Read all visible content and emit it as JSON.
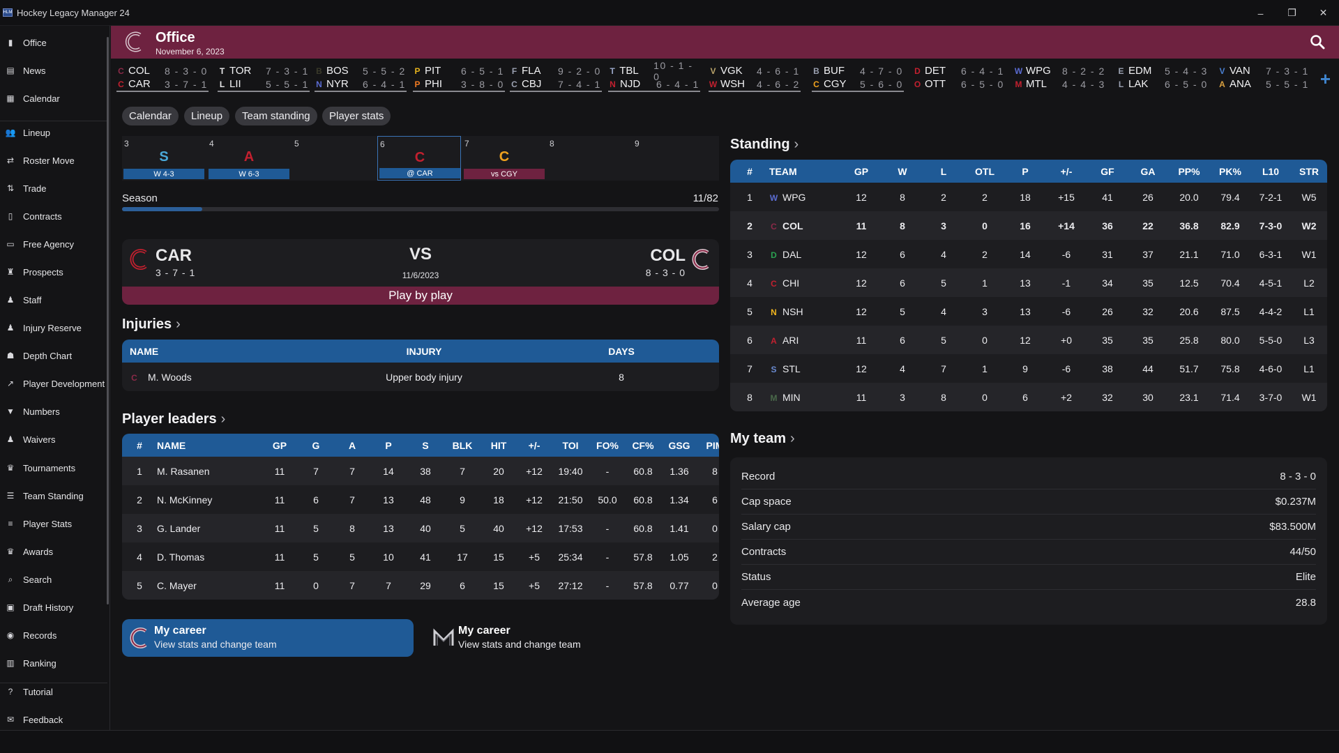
{
  "window": {
    "title": "Hockey Legacy Manager 24",
    "icon_text": "HLM"
  },
  "sidebar": {
    "items": [
      {
        "label": "Office",
        "icon": "building-icon",
        "glyph": "▮"
      },
      {
        "label": "News",
        "icon": "newspaper-icon",
        "glyph": "▤"
      },
      {
        "label": "Calendar",
        "icon": "calendar-icon",
        "glyph": "▦"
      },
      {
        "label": "Lineup",
        "icon": "users-icon",
        "glyph": "👥"
      },
      {
        "label": "Roster Move",
        "icon": "swap-icon",
        "glyph": "⇄"
      },
      {
        "label": "Trade",
        "icon": "trade-icon",
        "glyph": "⇅"
      },
      {
        "label": "Contracts",
        "icon": "document-icon",
        "glyph": "▯"
      },
      {
        "label": "Free Agency",
        "icon": "id-card-icon",
        "glyph": "▭"
      },
      {
        "label": "Prospects",
        "icon": "binoculars-icon",
        "glyph": "♜"
      },
      {
        "label": "Staff",
        "icon": "user-tie-icon",
        "glyph": "♟"
      },
      {
        "label": "Injury Reserve",
        "icon": "user-medical-icon",
        "glyph": "♟"
      },
      {
        "label": "Depth Chart",
        "icon": "sitemap-icon",
        "glyph": "☗"
      },
      {
        "label": "Player Development",
        "icon": "chart-line-icon",
        "glyph": "↗"
      },
      {
        "label": "Numbers",
        "icon": "jersey-icon",
        "glyph": "▼"
      },
      {
        "label": "Waivers",
        "icon": "user-minus-icon",
        "glyph": "♟"
      },
      {
        "label": "Tournaments",
        "icon": "trophy-icon",
        "glyph": "♛"
      },
      {
        "label": "Team Standing",
        "icon": "list-icon",
        "glyph": "☰"
      },
      {
        "label": "Player Stats",
        "icon": "database-icon",
        "glyph": "≡"
      },
      {
        "label": "Awards",
        "icon": "award-icon",
        "glyph": "♛"
      },
      {
        "label": "Search",
        "icon": "search-icon",
        "glyph": "⌕"
      },
      {
        "label": "Draft History",
        "icon": "book-icon",
        "glyph": "▣"
      },
      {
        "label": "Records",
        "icon": "globe-icon",
        "glyph": "◉"
      },
      {
        "label": "Ranking",
        "icon": "bar-chart-icon",
        "glyph": "▥"
      },
      {
        "label": "Tutorial",
        "icon": "question-circle-icon",
        "glyph": "?"
      },
      {
        "label": "Feedback",
        "icon": "comments-icon",
        "glyph": "✉"
      }
    ]
  },
  "header": {
    "title": "Office",
    "date": "November 6, 2023",
    "team_letter": "C",
    "accent": "#6e2240"
  },
  "ticker": {
    "games": [
      {
        "t1": {
          "abbr": "COL",
          "rec": "8 - 3 - 0",
          "logo": "C",
          "color": "#8b2a48"
        },
        "t2": {
          "abbr": "CAR",
          "rec": "3 - 7 - 1",
          "logo": "C",
          "color": "#c2202f"
        }
      },
      {
        "t1": {
          "abbr": "TOR",
          "rec": "7 - 3 - 1",
          "logo": "T",
          "color": "#e8e8ea"
        },
        "t2": {
          "abbr": "LII",
          "rec": "5 - 5 - 1",
          "logo": "L",
          "color": "#e8e8ea"
        }
      },
      {
        "t1": {
          "abbr": "BOS",
          "rec": "5 - 5 - 2",
          "logo": "B",
          "color": "#3a3a2a"
        },
        "t2": {
          "abbr": "NYR",
          "rec": "6 - 4 - 1",
          "logo": "N",
          "color": "#5a6bd0"
        }
      },
      {
        "t1": {
          "abbr": "PIT",
          "rec": "6 - 5 - 1",
          "logo": "P",
          "color": "#e6b31e"
        },
        "t2": {
          "abbr": "PHI",
          "rec": "3 - 8 - 0",
          "logo": "P",
          "color": "#f07a22"
        }
      },
      {
        "t1": {
          "abbr": "FLA",
          "rec": "9 - 2 - 0",
          "logo": "F",
          "color": "#9aa0b0"
        },
        "t2": {
          "abbr": "CBJ",
          "rec": "7 - 4 - 1",
          "logo": "C",
          "color": "#9aa0b0"
        }
      },
      {
        "t1": {
          "abbr": "TBL",
          "rec": "10 - 1 - 0",
          "logo": "T",
          "color": "#9aa6c8"
        },
        "t2": {
          "abbr": "NJD",
          "rec": "6 - 4 - 1",
          "logo": "N",
          "color": "#c2202f"
        }
      },
      {
        "t1": {
          "abbr": "VGK",
          "rec": "4 - 6 - 1",
          "logo": "V",
          "color": "#b9a36a"
        },
        "t2": {
          "abbr": "WSH",
          "rec": "4 - 6 - 2",
          "logo": "W",
          "color": "#c2202f"
        }
      },
      {
        "t1": {
          "abbr": "BUF",
          "rec": "4 - 7 - 0",
          "logo": "B",
          "color": "#9aa0b0"
        },
        "t2": {
          "abbr": "CGY",
          "rec": "5 - 6 - 0",
          "logo": "C",
          "color": "#f0a21e"
        }
      },
      {
        "t1": {
          "abbr": "DET",
          "rec": "6 - 4 - 1",
          "logo": "D",
          "color": "#c2202f"
        },
        "t2": {
          "abbr": "OTT",
          "rec": "6 - 5 - 0",
          "logo": "O",
          "color": "#c2202f"
        }
      },
      {
        "t1": {
          "abbr": "WPG",
          "rec": "8 - 2 - 2",
          "logo": "W",
          "color": "#5a6bd0"
        },
        "t2": {
          "abbr": "MTL",
          "rec": "4 - 4 - 3",
          "logo": "M",
          "color": "#c2202f"
        }
      },
      {
        "t1": {
          "abbr": "EDM",
          "rec": "5 - 4 - 3",
          "logo": "E",
          "color": "#9aa0b0"
        },
        "t2": {
          "abbr": "LAK",
          "rec": "6 - 5 - 0",
          "logo": "L",
          "color": "#9aa0b0"
        }
      },
      {
        "t1": {
          "abbr": "VAN",
          "rec": "7 - 3 - 1",
          "logo": "V",
          "color": "#4a7fd0"
        },
        "t2": {
          "abbr": "ANA",
          "rec": "5 - 5 - 1",
          "logo": "A",
          "color": "#d8a040"
        }
      }
    ]
  },
  "tabs": [
    "Calendar",
    "Lineup",
    "Team standing",
    "Player stats"
  ],
  "calendar": {
    "days": [
      {
        "num": "3",
        "logo": "S",
        "logo_color": "#4aa8d8",
        "result": "W 4-3",
        "bar": "#1f5a96"
      },
      {
        "num": "4",
        "logo": "A",
        "logo_color": "#c2202f",
        "result": "W 6-3",
        "bar": "#1f5a96"
      },
      {
        "num": "5",
        "logo": "",
        "logo_color": "",
        "result": "",
        "bar": ""
      },
      {
        "num": "6",
        "logo": "C",
        "logo_color": "#c2202f",
        "result": "@ CAR",
        "bar": "#1f5a96"
      },
      {
        "num": "7",
        "logo": "C",
        "logo_color": "#f0a21e",
        "result": "vs CGY",
        "bar": "#6e2240"
      },
      {
        "num": "8",
        "logo": "",
        "logo_color": "",
        "result": "",
        "bar": ""
      },
      {
        "num": "9",
        "logo": "",
        "logo_color": "",
        "result": "",
        "bar": ""
      }
    ]
  },
  "season": {
    "label": "Season",
    "count": "11/82",
    "progress": 0.134
  },
  "next_game": {
    "home": {
      "abbr": "CAR",
      "rec": "3 - 7 - 1"
    },
    "away": {
      "abbr": "COL",
      "rec": "8 - 3 - 0"
    },
    "vs": "VS",
    "date": "11/6/2023",
    "button": "Play by play"
  },
  "injuries": {
    "title": "Injuries",
    "headers": [
      "NAME",
      "INJURY",
      "DAYS"
    ],
    "rows": [
      {
        "name": "M. Woods",
        "injury": "Upper body injury",
        "days": "8"
      }
    ]
  },
  "leaders": {
    "title": "Player leaders",
    "headers": [
      "#",
      "NAME",
      "GP",
      "G",
      "A",
      "P",
      "S",
      "BLK",
      "HIT",
      "+/-",
      "TOI",
      "FO%",
      "CF%",
      "GSG",
      "PIM"
    ],
    "rows": [
      [
        "1",
        "M. Rasanen",
        "11",
        "7",
        "7",
        "14",
        "38",
        "7",
        "20",
        "+12",
        "19:40",
        "-",
        "60.8",
        "1.36",
        "8"
      ],
      [
        "2",
        "N. McKinney",
        "11",
        "6",
        "7",
        "13",
        "48",
        "9",
        "18",
        "+12",
        "21:50",
        "50.0",
        "60.8",
        "1.34",
        "6"
      ],
      [
        "3",
        "G. Lander",
        "11",
        "5",
        "8",
        "13",
        "40",
        "5",
        "40",
        "+12",
        "17:53",
        "-",
        "60.8",
        "1.41",
        "0"
      ],
      [
        "4",
        "D. Thomas",
        "11",
        "5",
        "5",
        "10",
        "41",
        "17",
        "15",
        "+5",
        "25:34",
        "-",
        "57.8",
        "1.05",
        "2"
      ],
      [
        "5",
        "C. Mayer",
        "11",
        "0",
        "7",
        "7",
        "29",
        "6",
        "15",
        "+5",
        "27:12",
        "-",
        "57.8",
        "0.77",
        "0"
      ]
    ]
  },
  "standing": {
    "title": "Standing",
    "headers": [
      "#",
      "TEAM",
      "GP",
      "W",
      "L",
      "OTL",
      "P",
      "+/-",
      "GF",
      "GA",
      "PP%",
      "PK%",
      "L10",
      "STR"
    ],
    "rows": [
      {
        "cells": [
          "1",
          "WPG",
          "12",
          "8",
          "2",
          "2",
          "18",
          "+15",
          "41",
          "26",
          "20.0",
          "79.4",
          "7-2-1",
          "W5"
        ],
        "logo": "W",
        "color": "#5a6bd0",
        "bold": false
      },
      {
        "cells": [
          "2",
          "COL",
          "11",
          "8",
          "3",
          "0",
          "16",
          "+14",
          "36",
          "22",
          "36.8",
          "82.9",
          "7-3-0",
          "W2"
        ],
        "logo": "C",
        "color": "#8b2a48",
        "bold": true
      },
      {
        "cells": [
          "3",
          "DAL",
          "12",
          "6",
          "4",
          "2",
          "14",
          "-6",
          "31",
          "37",
          "21.1",
          "71.0",
          "6-3-1",
          "W1"
        ],
        "logo": "D",
        "color": "#2aa050",
        "bold": false
      },
      {
        "cells": [
          "4",
          "CHI",
          "12",
          "6",
          "5",
          "1",
          "13",
          "-1",
          "34",
          "35",
          "12.5",
          "70.4",
          "4-5-1",
          "L2"
        ],
        "logo": "C",
        "color": "#c2202f",
        "bold": false
      },
      {
        "cells": [
          "5",
          "NSH",
          "12",
          "5",
          "4",
          "3",
          "13",
          "-6",
          "26",
          "32",
          "20.6",
          "87.5",
          "4-4-2",
          "L1"
        ],
        "logo": "N",
        "color": "#f0b41e",
        "bold": false
      },
      {
        "cells": [
          "6",
          "ARI",
          "11",
          "6",
          "5",
          "0",
          "12",
          "+0",
          "35",
          "35",
          "25.8",
          "80.0",
          "5-5-0",
          "L3"
        ],
        "logo": "A",
        "color": "#c2202f",
        "bold": false
      },
      {
        "cells": [
          "7",
          "STL",
          "12",
          "4",
          "7",
          "1",
          "9",
          "-6",
          "38",
          "44",
          "51.7",
          "75.8",
          "4-6-0",
          "L1"
        ],
        "logo": "S",
        "color": "#6a8ad0",
        "bold": false
      },
      {
        "cells": [
          "8",
          "MIN",
          "11",
          "3",
          "8",
          "0",
          "6",
          "+2",
          "32",
          "30",
          "23.1",
          "71.4",
          "3-7-0",
          "W1"
        ],
        "logo": "M",
        "color": "#4a6a4a",
        "bold": false
      }
    ]
  },
  "my_team": {
    "title": "My team",
    "rows": [
      {
        "label": "Record",
        "value": "8 - 3 - 0"
      },
      {
        "label": "Cap space",
        "value": "$0.237M"
      },
      {
        "label": "Salary cap",
        "value": "$83.500M"
      },
      {
        "label": "Contracts",
        "value": "44/50"
      },
      {
        "label": "Status",
        "value": "Elite"
      },
      {
        "label": "Average age",
        "value": "28.8"
      }
    ]
  },
  "career": [
    {
      "title": "My career",
      "subtitle": "View stats and change team",
      "logo": "C"
    },
    {
      "title": "My career",
      "subtitle": "View stats and change team",
      "logo": "M"
    }
  ]
}
